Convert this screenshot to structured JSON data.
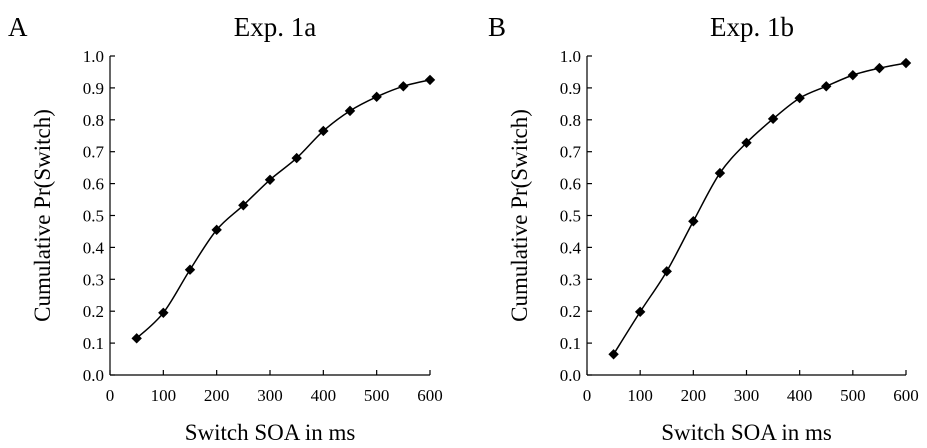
{
  "chart_data": [
    {
      "type": "line",
      "panel_label": "A",
      "title": "Exp. 1a",
      "xlabel": "Switch SOA in ms",
      "ylabel": "Cumulative Pr(Switch)",
      "xlim": [
        0,
        600
      ],
      "ylim": [
        0,
        1.0
      ],
      "xticks": [
        "0",
        "100",
        "200",
        "300",
        "400",
        "500",
        "600"
      ],
      "yticks": [
        "0.0",
        "0.1",
        "0.2",
        "0.3",
        "0.4",
        "0.5",
        "0.6",
        "0.7",
        "0.8",
        "0.9",
        "1.0"
      ],
      "grid": false,
      "marker": "diamond",
      "series": [
        {
          "x": [
            50,
            100,
            150,
            200,
            250,
            300,
            350,
            400,
            450,
            500,
            550,
            600
          ],
          "values": [
            0.115,
            0.195,
            0.33,
            0.455,
            0.532,
            0.612,
            0.68,
            0.765,
            0.828,
            0.872,
            0.905,
            0.925
          ]
        }
      ]
    },
    {
      "type": "line",
      "panel_label": "B",
      "title": "Exp. 1b",
      "xlabel": "Switch SOA in ms",
      "ylabel": "Cumulative Pr(Switch)",
      "xlim": [
        0,
        600
      ],
      "ylim": [
        0,
        1.0
      ],
      "xticks": [
        "0",
        "100",
        "200",
        "300",
        "400",
        "500",
        "600"
      ],
      "yticks": [
        "0.0",
        "0.1",
        "0.2",
        "0.3",
        "0.4",
        "0.5",
        "0.6",
        "0.7",
        "0.8",
        "0.9",
        "1.0"
      ],
      "grid": false,
      "marker": "diamond",
      "series": [
        {
          "x": [
            50,
            100,
            150,
            200,
            250,
            300,
            350,
            400,
            450,
            500,
            550,
            600
          ],
          "values": [
            0.065,
            0.198,
            0.325,
            0.482,
            0.633,
            0.728,
            0.803,
            0.868,
            0.905,
            0.94,
            0.962,
            0.978
          ]
        }
      ]
    }
  ]
}
